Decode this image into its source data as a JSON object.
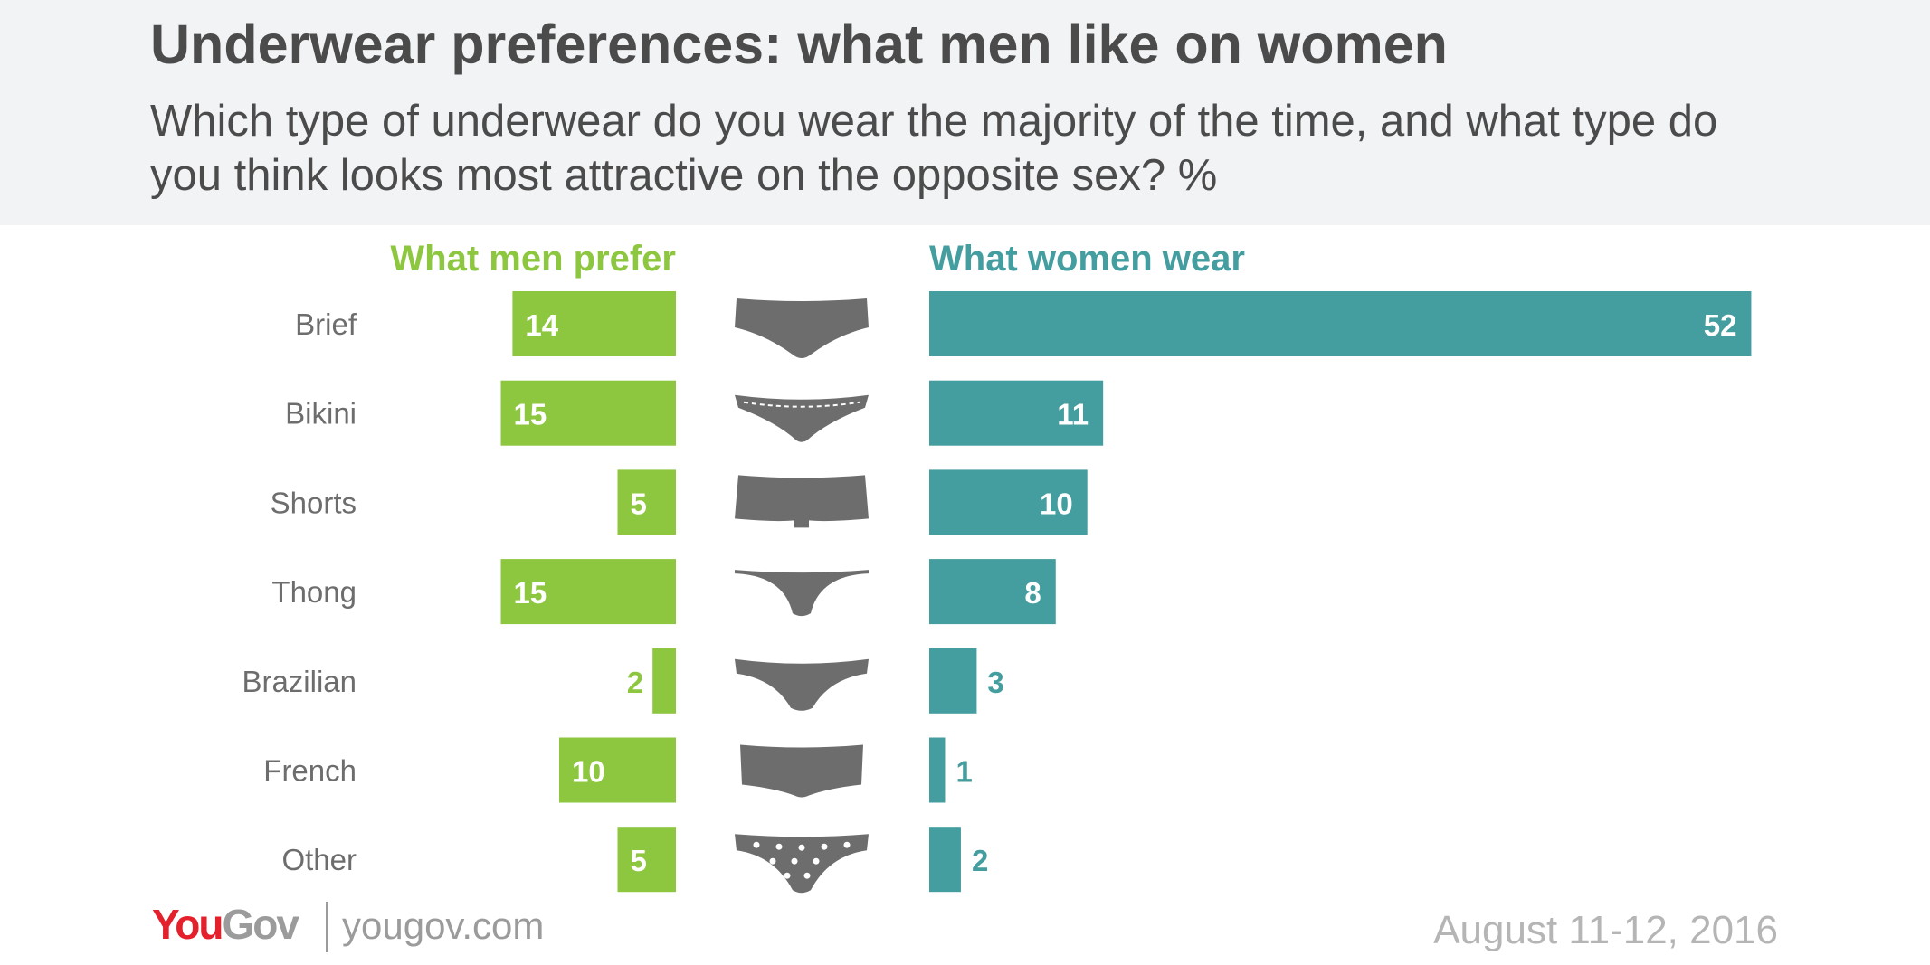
{
  "header": {
    "title": "Underwear preferences: what men like on women",
    "subtitle": "Which type of underwear do you wear the majority of the time, and what type do you think looks most attractive on the opposite sex? %"
  },
  "chart_data": {
    "type": "bar",
    "categories": [
      "Brief",
      "Bikini",
      "Shorts",
      "Thong",
      "Brazilian",
      "French",
      "Other"
    ],
    "series": [
      {
        "name": "What men prefer",
        "values": [
          14,
          15,
          5,
          15,
          2,
          10,
          5
        ],
        "color": "#8dc63f"
      },
      {
        "name": "What women wear",
        "values": [
          52,
          11,
          10,
          8,
          3,
          1,
          2
        ],
        "color": "#449d9f"
      }
    ],
    "icons": [
      "brief-icon",
      "bikini-icon",
      "shorts-icon",
      "thong-icon",
      "brazilian-icon",
      "french-icon",
      "other-hearts-icon"
    ],
    "icon_color": "#6c6d6c",
    "label_color": "#6d6d6d"
  },
  "footer": {
    "logo_you": "You",
    "logo_gov": "Gov",
    "site": "yougov.com",
    "date": "August 11-12, 2016"
  }
}
